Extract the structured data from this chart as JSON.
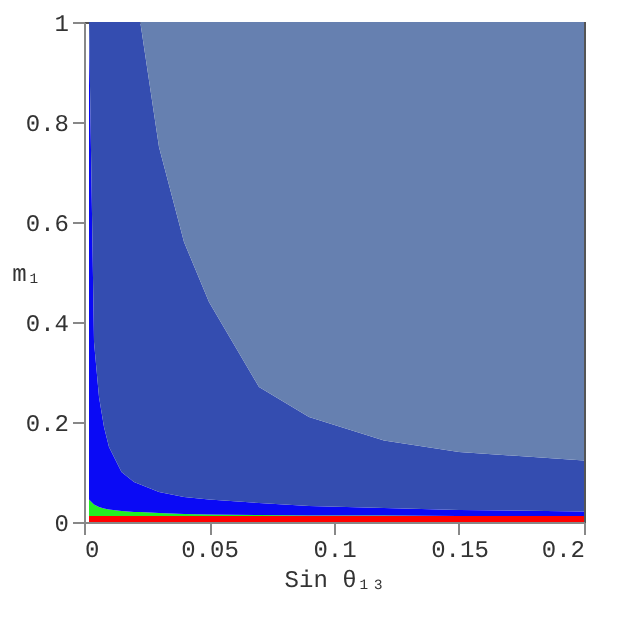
{
  "chart_data": {
    "type": "area",
    "stacked": true,
    "xlabel": "Sin θ₁₃",
    "ylabel": "m₁",
    "x": [
      0.002,
      0.004,
      0.006,
      0.008,
      0.01,
      0.015,
      0.02,
      0.0225,
      0.03,
      0.04,
      0.05,
      0.07,
      0.09,
      0.12,
      0.15,
      0.2
    ],
    "series": [
      {
        "color": "#ff0000",
        "values": [
          0.012,
          0.012,
          0.012,
          0.012,
          0.012,
          0.012,
          0.012,
          0.012,
          0.012,
          0.012,
          0.012,
          0.012,
          0.012,
          0.012,
          0.012,
          0.012
        ]
      },
      {
        "color": "#22ee22",
        "values": [
          0.033,
          0.023,
          0.018,
          0.015,
          0.013,
          0.01,
          0.008,
          0.008,
          0.006,
          0.004,
          0.003,
          0.002,
          0.001,
          0.001,
          0,
          0
        ]
      },
      {
        "color": "#0a0af5",
        "values": [
          0.955,
          0.325,
          0.22,
          0.163,
          0.125,
          0.078,
          0.06,
          0.055,
          0.042,
          0.034,
          0.03,
          0.024,
          0.019,
          0.015,
          0.012,
          0.009
        ]
      },
      {
        "color": "#344db0",
        "values": [
          0,
          0.64,
          0.75,
          0.81,
          0.85,
          0.9,
          0.92,
          0.925,
          0.69,
          0.51,
          0.395,
          0.232,
          0.178,
          0.135,
          0.116,
          0.102
        ]
      },
      {
        "color": "#6680b0",
        "values": [
          0,
          0,
          0,
          0,
          0,
          0,
          0,
          0,
          0.25,
          0.44,
          0.56,
          0.73,
          0.79,
          0.837,
          0.86,
          0.877
        ]
      }
    ],
    "xlim": [
      0,
      0.2
    ],
    "ylim": [
      0,
      1
    ],
    "xticks": [
      0,
      0.05,
      0.1,
      0.15,
      0.2
    ],
    "yticks": [
      0,
      0.2,
      0.4,
      0.6,
      0.8,
      1
    ],
    "grid": false,
    "legend": false
  }
}
